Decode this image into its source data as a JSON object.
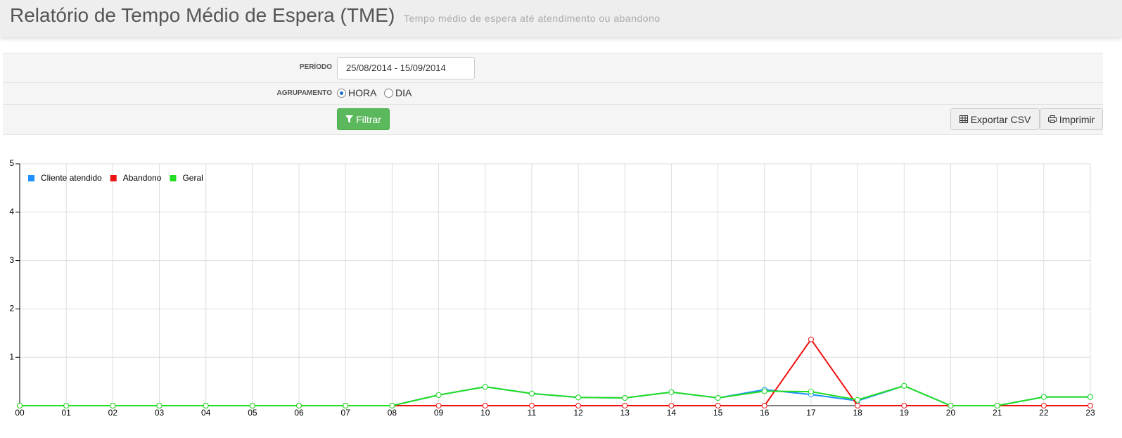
{
  "header": {
    "title": "Relatório de Tempo Médio de Espera (TME)",
    "subtitle": "Tempo médio de espera até atendimento ou abandono"
  },
  "form": {
    "periodo_label": "PERÍODO",
    "periodo_value": "25/08/2014 - 15/09/2014",
    "agrupamento_label": "AGRUPAMENTO",
    "options": [
      "HORA",
      "DIA"
    ],
    "selected_index": 0,
    "filter_button": "Filtrar",
    "export_button": "Exportar CSV",
    "print_button": "Imprimir"
  },
  "chart_data": {
    "type": "line",
    "categories": [
      "00",
      "01",
      "02",
      "03",
      "04",
      "05",
      "06",
      "07",
      "08",
      "09",
      "10",
      "11",
      "12",
      "13",
      "14",
      "15",
      "16",
      "17",
      "18",
      "19",
      "20",
      "21",
      "22",
      "23"
    ],
    "series": [
      {
        "name": "Cliente atendido",
        "color": "#1e90ff",
        "values": [
          0,
          0,
          0,
          0,
          0,
          0,
          0,
          0,
          0,
          0.22,
          0.39,
          0.25,
          0.17,
          0.16,
          0.28,
          0.16,
          0.33,
          0.23,
          0.1,
          0.41,
          0,
          0,
          0.18,
          0.18
        ]
      },
      {
        "name": "Abandono",
        "color": "#ee1111",
        "values": [
          0,
          0,
          0,
          0,
          0,
          0,
          0,
          0,
          0,
          0,
          0,
          0,
          0,
          0,
          0,
          0,
          0,
          1.37,
          0,
          0,
          0,
          0,
          0,
          0
        ]
      },
      {
        "name": "Geral",
        "color": "#22dd22",
        "values": [
          0,
          0,
          0,
          0,
          0,
          0,
          0,
          0,
          0,
          0.22,
          0.39,
          0.25,
          0.17,
          0.16,
          0.28,
          0.16,
          0.3,
          0.29,
          0.12,
          0.41,
          0,
          0,
          0.18,
          0.18
        ]
      }
    ],
    "ylim": [
      0,
      5
    ],
    "yticks": [
      1,
      2,
      3,
      4,
      5
    ],
    "grid": true,
    "legend": "top-left"
  }
}
